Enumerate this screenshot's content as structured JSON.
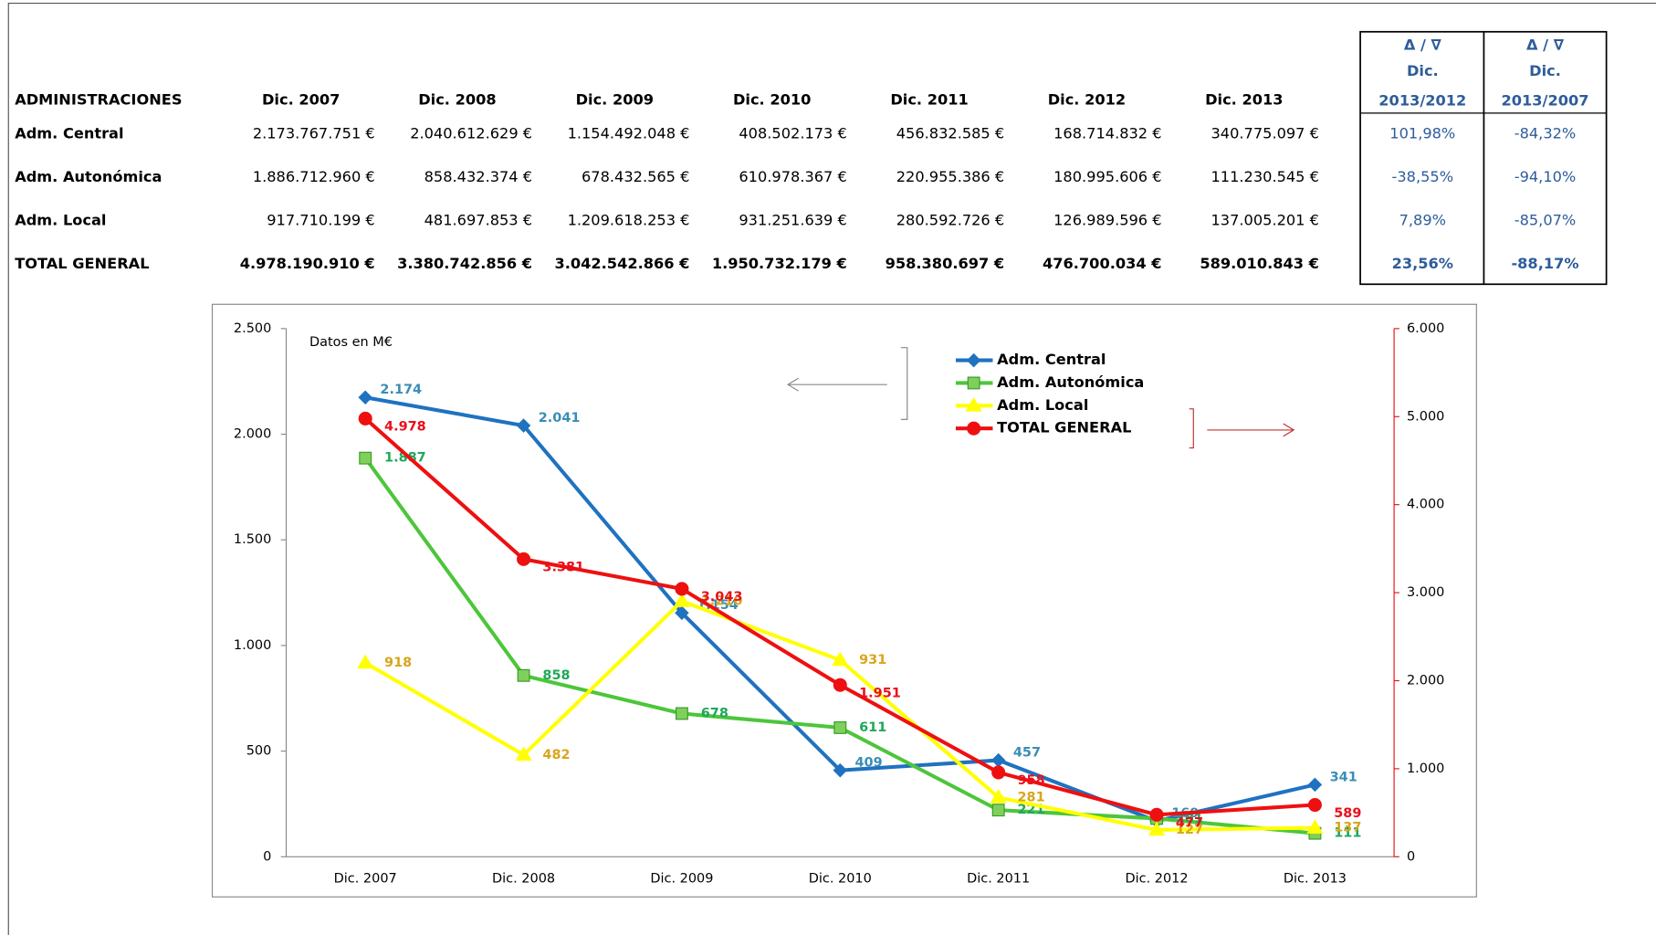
{
  "table": {
    "header": [
      "ADMINISTRACIONES",
      "Dic. 2007",
      "Dic. 2008",
      "Dic. 2009",
      "Dic. 2010",
      "Dic. 2011",
      "Dic. 2012",
      "Dic. 2013"
    ],
    "change_header": [
      {
        "symbol": "Δ / ∇",
        "line1": "Dic.",
        "line2": "2013/2012"
      },
      {
        "symbol": "Δ / ∇",
        "line1": "Dic.",
        "line2": "2013/2007"
      }
    ],
    "rows": [
      [
        "Adm. Central",
        "2.173.767.751 €",
        "2.040.612.629 €",
        "1.154.492.048 €",
        "408.502.173 €",
        "456.832.585 €",
        "168.714.832 €",
        "340.775.097 €",
        "101,98%",
        "-84,32%"
      ],
      [
        "Adm. Autonómica",
        "1.886.712.960 €",
        "858.432.374 €",
        "678.432.565 €",
        "610.978.367 €",
        "220.955.386 €",
        "180.995.606 €",
        "111.230.545 €",
        "-38,55%",
        "-94,10%"
      ],
      [
        "Adm. Local",
        "917.710.199 €",
        "481.697.853 €",
        "1.209.618.253 €",
        "931.251.639 €",
        "280.592.726 €",
        "126.989.596 €",
        "137.005.201 €",
        "7,89%",
        "-85,07%"
      ],
      [
        "TOTAL GENERAL",
        "4.978.190.910 €",
        "3.380.742.856 €",
        "3.042.542.866 €",
        "1.950.732.179 €",
        "958.380.697 €",
        "476.700.034 €",
        "589.010.843 €",
        "23,56%",
        "-88,17%"
      ]
    ]
  },
  "chart_data": {
    "type": "line",
    "annotation": "Datos en M€",
    "categories": [
      "Dic. 2007",
      "Dic. 2008",
      "Dic. 2009",
      "Dic. 2010",
      "Dic. 2011",
      "Dic. 2012",
      "Dic. 2013"
    ],
    "ylim": [
      0,
      2500
    ],
    "yticks": [
      0,
      500,
      {
        "value": 1000,
        "label": "1.000"
      },
      {
        "value": 1500,
        "label": "1.500"
      },
      {
        "value": 2000,
        "label": "2.000"
      },
      {
        "value": 2500,
        "label": "2.500"
      }
    ],
    "y2lim": [
      0,
      6000
    ],
    "y2ticks": [
      0,
      {
        "value": 1000,
        "label": "1.000"
      },
      {
        "value": 2000,
        "label": "2.000"
      },
      {
        "value": 3000,
        "label": "3.000"
      },
      {
        "value": 4000,
        "label": "4.000"
      },
      {
        "value": 5000,
        "label": "5.000"
      },
      {
        "value": 6000,
        "label": "6.000"
      }
    ],
    "y2_color": "#e8101a",
    "series": [
      {
        "name": "Adm. Central",
        "color": "#1f72c0",
        "label_color": "#3a8db5",
        "marker": "diamond",
        "values": [
          2174,
          2041,
          1154,
          409,
          457,
          169,
          341
        ],
        "value_labels": [
          "2.174",
          "2.041",
          "1.154",
          "409",
          "457",
          "169",
          "341"
        ]
      },
      {
        "name": "Adm. Autonómica",
        "color": "#4cc63a",
        "label_color": "#1fa85a",
        "marker": "square",
        "values": [
          1887,
          858,
          678,
          611,
          221,
          181,
          111
        ],
        "value_labels": [
          "1.887",
          "858",
          "678",
          "611",
          "221",
          "181",
          "111"
        ]
      },
      {
        "name": "Adm. Local",
        "color": "#ffff00",
        "label_color": "#d9a51c",
        "marker": "triangle",
        "values": [
          918,
          482,
          1210,
          931,
          281,
          127,
          137
        ],
        "value_labels": [
          "918",
          "482",
          "1.210",
          "931",
          "281",
          "127",
          "137"
        ]
      },
      {
        "name": "TOTAL GENERAL",
        "color": "#ee1010",
        "label_color": "#e8101a",
        "marker": "circle",
        "axis": "y2",
        "values": [
          4978,
          3381,
          3043,
          1951,
          958,
          477,
          589
        ],
        "value_labels": [
          "4.978",
          "3.381",
          "3.043",
          "1.951",
          "958",
          "477",
          "589"
        ]
      }
    ]
  }
}
